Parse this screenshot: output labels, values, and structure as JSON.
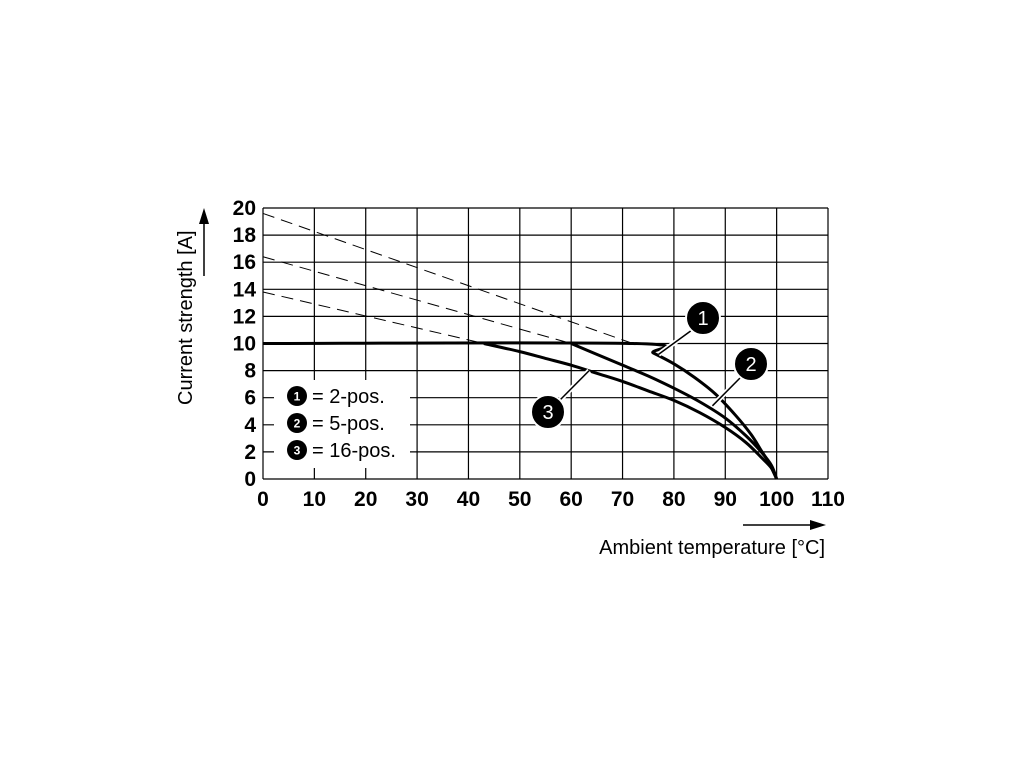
{
  "chart_data": {
    "type": "line",
    "xlabel": "Ambient temperature [°C]",
    "ylabel": "Current strength [A]",
    "xlim": [
      0,
      110
    ],
    "ylim": [
      0,
      20
    ],
    "xticks": [
      "0",
      "10",
      "20",
      "30",
      "40",
      "50",
      "60",
      "70",
      "80",
      "90",
      "100",
      "110"
    ],
    "yticks": [
      "0",
      "2",
      "4",
      "6",
      "8",
      "10",
      "12",
      "14",
      "16",
      "18",
      "20"
    ],
    "grid": true,
    "legend_position": "left",
    "legend": [
      {
        "marker": "1",
        "label": "= 2-pos."
      },
      {
        "marker": "2",
        "label": "= 5-pos."
      },
      {
        "marker": "3",
        "label": "= 16-pos."
      }
    ],
    "series": [
      {
        "marker": "1",
        "style": "solid",
        "x": [
          0,
          72,
          76,
          80,
          84,
          88,
          92,
          95,
          97,
          98.5,
          100
        ],
        "y": [
          10,
          10,
          9.3,
          8.5,
          7.5,
          6.3,
          4.7,
          3.3,
          2.1,
          1.2,
          0
        ]
      },
      {
        "marker": "2",
        "style": "solid",
        "x": [
          60,
          65,
          70,
          75,
          80,
          85,
          90,
          94,
          97,
          99,
          100
        ],
        "y": [
          10,
          9.2,
          8.4,
          7.6,
          6.7,
          5.7,
          4.5,
          3.2,
          2.0,
          1.0,
          0
        ]
      },
      {
        "marker": "3",
        "style": "solid",
        "x": [
          43,
          50,
          55,
          60,
          65,
          70,
          75,
          80,
          85,
          90,
          94,
          97,
          99,
          100
        ],
        "y": [
          10,
          9.4,
          8.9,
          8.4,
          7.8,
          7.2,
          6.5,
          5.8,
          4.9,
          3.8,
          2.7,
          1.6,
          0.8,
          0
        ]
      },
      {
        "marker": "1",
        "style": "dashed",
        "x": [
          0,
          72
        ],
        "y": [
          19.6,
          10
        ]
      },
      {
        "marker": "2",
        "style": "dashed",
        "x": [
          0,
          60
        ],
        "y": [
          16.4,
          10
        ]
      },
      {
        "marker": "3",
        "style": "dashed",
        "x": [
          0,
          43
        ],
        "y": [
          13.8,
          10
        ]
      }
    ]
  }
}
